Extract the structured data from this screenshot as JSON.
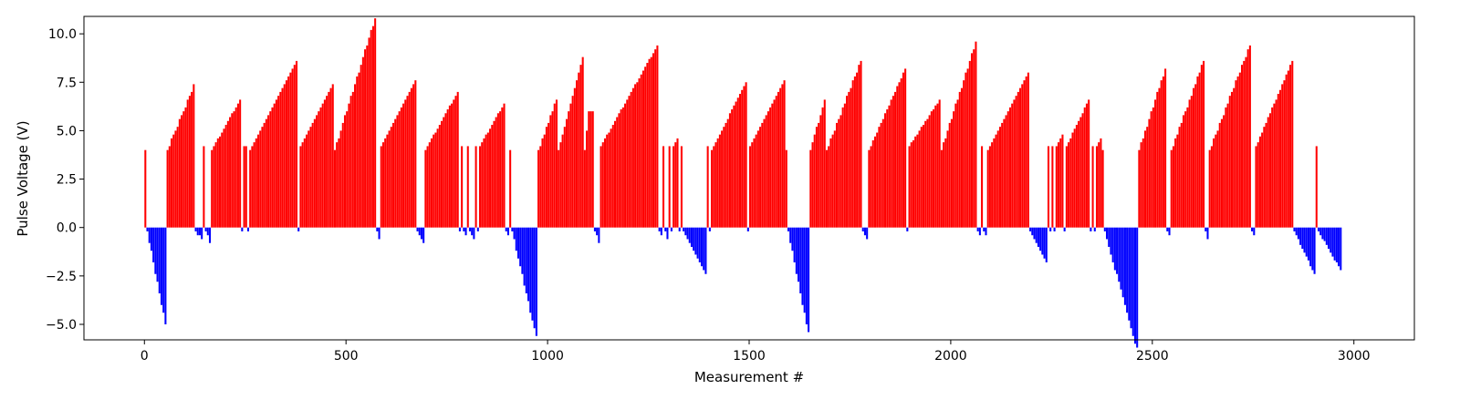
{
  "chart_data": {
    "type": "bar",
    "title": "",
    "xlabel": "Measurement #",
    "ylabel": "Pulse Voltage (V)",
    "xlim": [
      -150,
      3150
    ],
    "ylim": [
      -5.8,
      10.9
    ],
    "xticks": [
      0,
      500,
      1000,
      1500,
      2000,
      2500,
      3000
    ],
    "yticks": [
      -5.0,
      -2.5,
      0.0,
      2.5,
      5.0,
      7.5,
      10.0
    ],
    "grid": false,
    "colors": {
      "positive": "#ff0000",
      "negative": "#0000ff",
      "axes": "#000000"
    },
    "segments": [
      {
        "from": 0,
        "to": 5,
        "start": 4.0,
        "end": 4.0,
        "step": 0.0
      },
      {
        "from": 5,
        "to": 55,
        "start": -0.2,
        "end": -5.0,
        "step": 0.2
      },
      {
        "from": 55,
        "to": 125,
        "start": 4.0,
        "end": 7.3,
        "step": 0.2
      },
      {
        "from": 125,
        "to": 145,
        "start": -0.2,
        "end": -0.6,
        "step": 0.2
      },
      {
        "from": 145,
        "to": 150,
        "start": 4.2,
        "end": 4.2,
        "step": 0.0
      },
      {
        "from": 150,
        "to": 165,
        "start": -0.2,
        "end": -0.8,
        "step": 0.2
      },
      {
        "from": 165,
        "to": 240,
        "start": 4.0,
        "end": 6.6,
        "step": 0.1
      },
      {
        "from": 240,
        "to": 245,
        "start": -0.2,
        "end": -0.4,
        "step": 0.2
      },
      {
        "from": 245,
        "to": 255,
        "start": 4.2,
        "end": 4.2,
        "step": 0.0
      },
      {
        "from": 255,
        "to": 260,
        "start": -0.2,
        "end": -0.2,
        "step": 0.0
      },
      {
        "from": 260,
        "to": 380,
        "start": 4.0,
        "end": 8.6,
        "step": 0.1
      },
      {
        "from": 380,
        "to": 385,
        "start": -0.2,
        "end": -0.2,
        "step": 0.0
      },
      {
        "from": 385,
        "to": 470,
        "start": 4.2,
        "end": 7.4,
        "step": 0.1
      },
      {
        "from": 470,
        "to": 575,
        "start": 4.0,
        "end": 10.8,
        "step": 0.2
      },
      {
        "from": 575,
        "to": 585,
        "start": -0.2,
        "end": -0.6,
        "step": 0.2
      },
      {
        "from": 585,
        "to": 675,
        "start": 4.2,
        "end": 7.6,
        "step": 0.1
      },
      {
        "from": 675,
        "to": 695,
        "start": -0.2,
        "end": -0.8,
        "step": 0.2
      },
      {
        "from": 695,
        "to": 780,
        "start": 4.0,
        "end": 7.0,
        "step": 0.1
      },
      {
        "from": 780,
        "to": 785,
        "start": -0.2,
        "end": -0.2,
        "step": 0.0
      },
      {
        "from": 785,
        "to": 790,
        "start": 4.2,
        "end": 4.2,
        "step": 0.0
      },
      {
        "from": 790,
        "to": 800,
        "start": -0.2,
        "end": -0.4,
        "step": 0.2
      },
      {
        "from": 800,
        "to": 805,
        "start": 4.2,
        "end": 4.2,
        "step": 0.0
      },
      {
        "from": 805,
        "to": 820,
        "start": -0.2,
        "end": -0.6,
        "step": 0.2
      },
      {
        "from": 820,
        "to": 825,
        "start": 4.2,
        "end": 4.2,
        "step": 0.0
      },
      {
        "from": 825,
        "to": 830,
        "start": -0.2,
        "end": -0.2,
        "step": 0.0
      },
      {
        "from": 830,
        "to": 895,
        "start": 4.2,
        "end": 6.4,
        "step": 0.1
      },
      {
        "from": 895,
        "to": 905,
        "start": -0.2,
        "end": -0.4,
        "step": 0.2
      },
      {
        "from": 905,
        "to": 910,
        "start": 4.0,
        "end": 4.0,
        "step": 0.0
      },
      {
        "from": 910,
        "to": 975,
        "start": -0.2,
        "end": -5.7,
        "step": 0.2
      },
      {
        "from": 975,
        "to": 1025,
        "start": 4.0,
        "end": 6.6,
        "step": 0.2
      },
      {
        "from": 1025,
        "to": 1090,
        "start": 4.0,
        "end": 8.8,
        "step": 0.2
      },
      {
        "from": 1090,
        "to": 1105,
        "start": 4.0,
        "end": 6.0,
        "step": 0.2
      },
      {
        "from": 1105,
        "to": 1115,
        "start": 6.0,
        "end": 6.0,
        "step": 0.0
      },
      {
        "from": 1115,
        "to": 1130,
        "start": -0.2,
        "end": -0.8,
        "step": 0.2
      },
      {
        "from": 1130,
        "to": 1275,
        "start": 4.2,
        "end": 9.4,
        "step": 0.1
      },
      {
        "from": 1275,
        "to": 1285,
        "start": -0.2,
        "end": -0.4,
        "step": 0.2
      },
      {
        "from": 1285,
        "to": 1290,
        "start": 4.2,
        "end": 4.2,
        "step": 0.0
      },
      {
        "from": 1290,
        "to": 1300,
        "start": -0.2,
        "end": -0.6,
        "step": 0.2
      },
      {
        "from": 1300,
        "to": 1305,
        "start": 4.2,
        "end": 4.2,
        "step": 0.0
      },
      {
        "from": 1305,
        "to": 1310,
        "start": -0.2,
        "end": -0.2,
        "step": 0.0
      },
      {
        "from": 1310,
        "to": 1325,
        "start": 4.2,
        "end": 4.6,
        "step": 0.2
      },
      {
        "from": 1325,
        "to": 1330,
        "start": -0.2,
        "end": -0.2,
        "step": 0.0
      },
      {
        "from": 1330,
        "to": 1335,
        "start": 4.2,
        "end": 4.2,
        "step": 0.0
      },
      {
        "from": 1335,
        "to": 1395,
        "start": -0.2,
        "end": -2.4,
        "step": 0.1
      },
      {
        "from": 1395,
        "to": 1400,
        "start": 4.2,
        "end": 4.2,
        "step": 0.0
      },
      {
        "from": 1400,
        "to": 1405,
        "start": -0.2,
        "end": -0.2,
        "step": 0.0
      },
      {
        "from": 1405,
        "to": 1495,
        "start": 4.0,
        "end": 7.5,
        "step": 0.1
      },
      {
        "from": 1495,
        "to": 1500,
        "start": -0.2,
        "end": -0.2,
        "step": 0.0
      },
      {
        "from": 1500,
        "to": 1590,
        "start": 4.2,
        "end": 7.6,
        "step": 0.1
      },
      {
        "from": 1590,
        "to": 1595,
        "start": 4.0,
        "end": 4.0,
        "step": 0.0
      },
      {
        "from": 1595,
        "to": 1650,
        "start": -0.2,
        "end": -5.5,
        "step": 0.2
      },
      {
        "from": 1650,
        "to": 1690,
        "start": 4.0,
        "end": 6.6,
        "step": 0.2
      },
      {
        "from": 1690,
        "to": 1780,
        "start": 4.0,
        "end": 8.6,
        "step": 0.2
      },
      {
        "from": 1780,
        "to": 1795,
        "start": -0.2,
        "end": -0.6,
        "step": 0.2
      },
      {
        "from": 1795,
        "to": 1890,
        "start": 4.0,
        "end": 8.2,
        "step": 0.1
      },
      {
        "from": 1890,
        "to": 1895,
        "start": -0.2,
        "end": -0.2,
        "step": 0.0
      },
      {
        "from": 1895,
        "to": 1975,
        "start": 4.2,
        "end": 6.6,
        "step": 0.1
      },
      {
        "from": 1975,
        "to": 2065,
        "start": 4.0,
        "end": 9.6,
        "step": 0.2
      },
      {
        "from": 2065,
        "to": 2075,
        "start": -0.2,
        "end": -0.4,
        "step": 0.2
      },
      {
        "from": 2075,
        "to": 2080,
        "start": 4.2,
        "end": 4.2,
        "step": 0.0
      },
      {
        "from": 2080,
        "to": 2090,
        "start": -0.2,
        "end": -0.4,
        "step": 0.2
      },
      {
        "from": 2090,
        "to": 2195,
        "start": 4.0,
        "end": 8.0,
        "step": 0.1
      },
      {
        "from": 2195,
        "to": 2240,
        "start": -0.2,
        "end": -1.8,
        "step": 0.1
      },
      {
        "from": 2240,
        "to": 2245,
        "start": 4.2,
        "end": 4.2,
        "step": 0.0
      },
      {
        "from": 2245,
        "to": 2250,
        "start": -0.2,
        "end": -0.2,
        "step": 0.0
      },
      {
        "from": 2250,
        "to": 2255,
        "start": 4.2,
        "end": 4.2,
        "step": 0.0
      },
      {
        "from": 2255,
        "to": 2260,
        "start": -0.2,
        "end": -0.2,
        "step": 0.0
      },
      {
        "from": 2260,
        "to": 2280,
        "start": 4.2,
        "end": 4.8,
        "step": 0.2
      },
      {
        "from": 2280,
        "to": 2285,
        "start": -0.2,
        "end": -0.2,
        "step": 0.0
      },
      {
        "from": 2285,
        "to": 2345,
        "start": 4.2,
        "end": 6.6,
        "step": 0.1
      },
      {
        "from": 2345,
        "to": 2350,
        "start": -0.2,
        "end": -0.2,
        "step": 0.0
      },
      {
        "from": 2350,
        "to": 2355,
        "start": 4.2,
        "end": 4.2,
        "step": 0.0
      },
      {
        "from": 2355,
        "to": 2360,
        "start": -0.2,
        "end": -0.2,
        "step": 0.0
      },
      {
        "from": 2360,
        "to": 2375,
        "start": 4.2,
        "end": 4.6,
        "step": 0.2
      },
      {
        "from": 2375,
        "to": 2380,
        "start": 4.0,
        "end": 4.0,
        "step": 0.0
      },
      {
        "from": 2380,
        "to": 2465,
        "start": -0.2,
        "end": -6.3,
        "step": 0.2
      },
      {
        "from": 2465,
        "to": 2535,
        "start": 4.0,
        "end": 8.2,
        "step": 0.2
      },
      {
        "from": 2535,
        "to": 2545,
        "start": -0.2,
        "end": -0.4,
        "step": 0.2
      },
      {
        "from": 2545,
        "to": 2630,
        "start": 4.0,
        "end": 8.6,
        "step": 0.2
      },
      {
        "from": 2630,
        "to": 2640,
        "start": -0.2,
        "end": -0.6,
        "step": 0.2
      },
      {
        "from": 2640,
        "to": 2745,
        "start": 4.0,
        "end": 9.4,
        "step": 0.2
      },
      {
        "from": 2745,
        "to": 2755,
        "start": -0.2,
        "end": -0.4,
        "step": 0.2
      },
      {
        "from": 2755,
        "to": 2850,
        "start": 4.2,
        "end": 8.6,
        "step": 0.1
      },
      {
        "from": 2850,
        "to": 2905,
        "start": -0.2,
        "end": -2.4,
        "step": 0.1
      },
      {
        "from": 2905,
        "to": 2910,
        "start": 4.2,
        "end": 4.2,
        "step": 0.0
      },
      {
        "from": 2910,
        "to": 2970,
        "start": -0.2,
        "end": -2.2,
        "step": 0.1
      }
    ]
  }
}
